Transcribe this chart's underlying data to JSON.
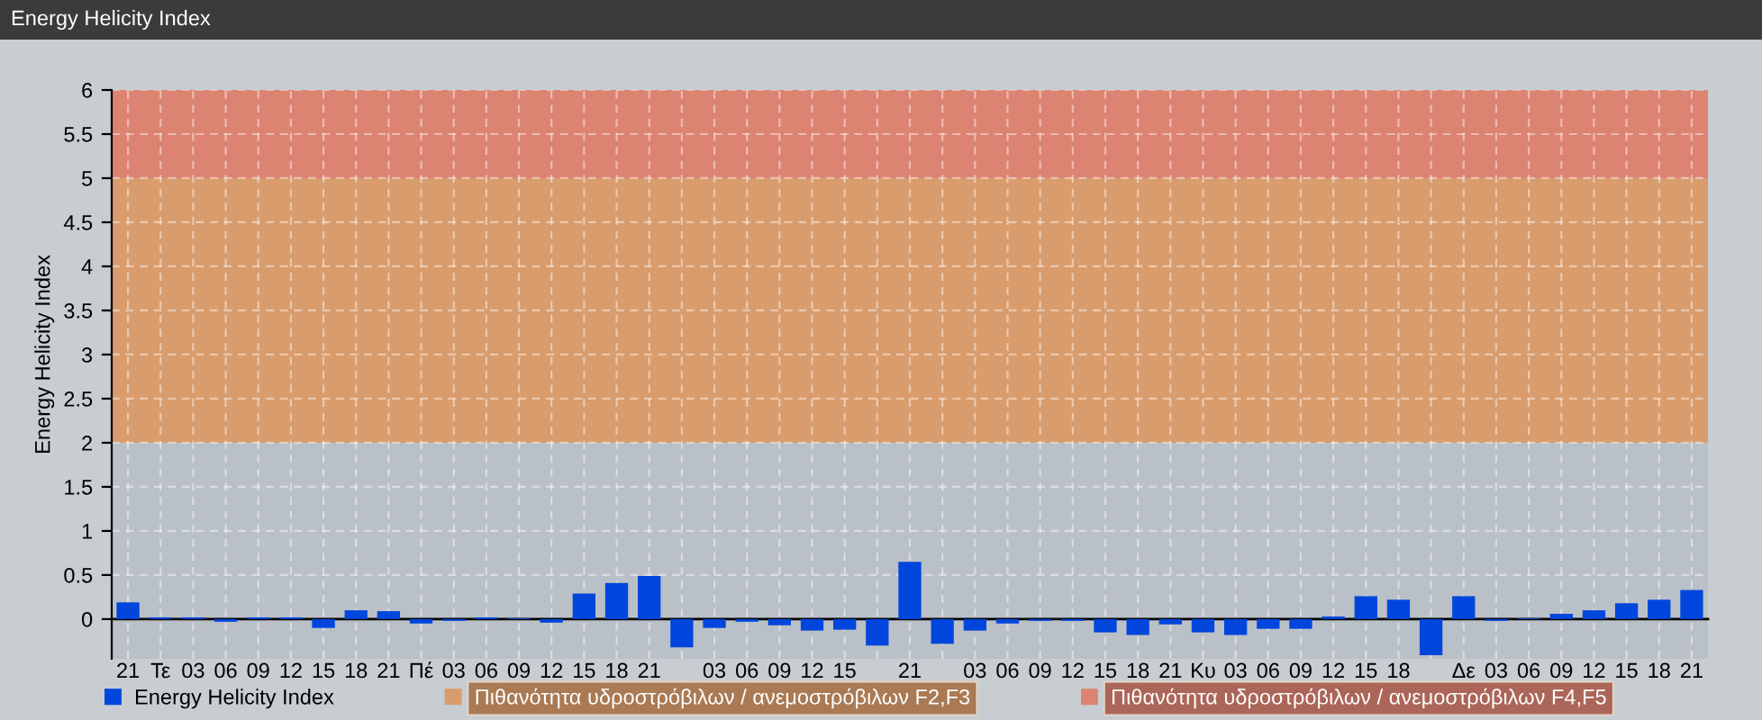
{
  "chart_data": {
    "type": "bar",
    "title": "Energy Helicity Index",
    "ylabel": "Energy Helicity Index",
    "categories": [
      "21",
      "Τε",
      "03",
      "06",
      "09",
      "12",
      "15",
      "18",
      "21",
      "Πέ",
      "03",
      "06",
      "09",
      "12",
      "15",
      "18",
      "21",
      null,
      "03",
      "06",
      "09",
      "12",
      "15",
      null,
      "21",
      null,
      "03",
      "06",
      "09",
      "12",
      "15",
      "18",
      "21",
      "Κυ",
      "03",
      "06",
      "09",
      "12",
      "15",
      "18",
      null,
      "Δε",
      "03",
      "06",
      "09",
      "12",
      "15",
      "18",
      "21"
    ],
    "series": [
      {
        "name": "Energy Helicity Index",
        "color": "#0046dc",
        "values": [
          0.19,
          0.02,
          0.02,
          -0.03,
          0.02,
          0.02,
          -0.1,
          0.1,
          0.09,
          -0.05,
          -0.02,
          0.02,
          0.01,
          -0.04,
          0.29,
          0.41,
          0.49,
          -0.32,
          -0.1,
          -0.03,
          -0.07,
          -0.13,
          -0.12,
          -0.3,
          0.65,
          -0.28,
          -0.13,
          -0.05,
          -0.02,
          -0.02,
          -0.15,
          -0.18,
          -0.06,
          -0.15,
          -0.18,
          -0.11,
          -0.11,
          0.03,
          0.26,
          0.22,
          -0.41,
          0.26,
          -0.02,
          0.01,
          0.06,
          0.1,
          0.18,
          0.22,
          0.33
        ]
      }
    ],
    "ylim": [
      -0.45,
      6
    ],
    "yticks": [
      0,
      0.5,
      1,
      1.5,
      2,
      2.5,
      3,
      3.5,
      4,
      4.5,
      5,
      5.5,
      6
    ],
    "bands": [
      {
        "axis": "y",
        "from": 2,
        "to": 5,
        "label": "Πιθανότητα υδροστρόβιλων / ανεμοστρόβιλων F2,F3",
        "color": "#d99c6c"
      },
      {
        "axis": "y",
        "from": 5,
        "to": 6,
        "label": "Πιθανότητα υδροστρόβιλων / ανεμοστρόβιλων F4,F5",
        "color": "#dc8372"
      }
    ],
    "grid": true,
    "legend": "bottom left"
  }
}
